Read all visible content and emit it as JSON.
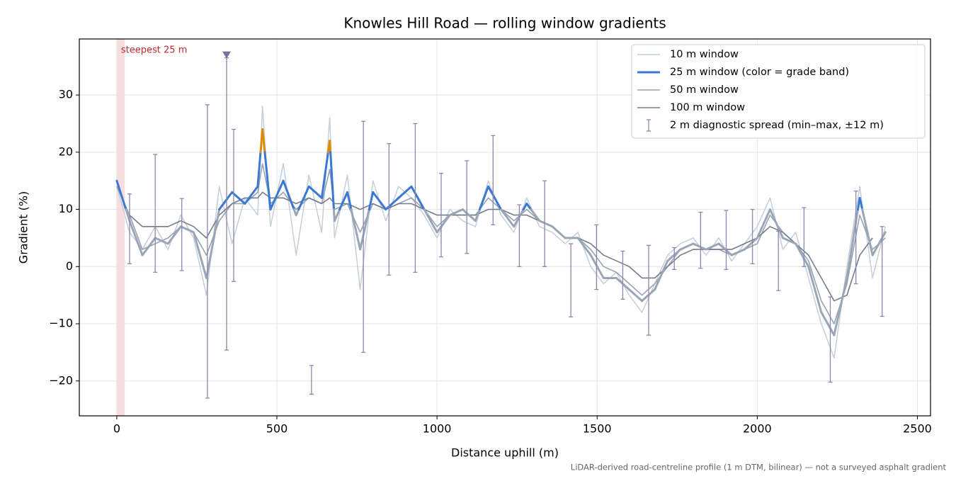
{
  "chart_data": {
    "type": "line",
    "title": "Knowles Hill Road — rolling window gradients",
    "x_label": "Distance uphill (m)",
    "y_label": "Gradient (%)",
    "footnote": "LiDAR-derived road-centreline profile (1 m DTM, bilinear) — not a surveyed asphalt gradient",
    "xlim": [
      -117,
      2541
    ],
    "ylim": [
      -26.1,
      39.8
    ],
    "xticks": [
      0,
      500,
      1000,
      1500,
      2000,
      2500
    ],
    "yticks": [
      {
        "value": -20,
        "label": "−20"
      },
      {
        "value": -10,
        "label": "−10"
      },
      0,
      10,
      20,
      30
    ],
    "grid": true,
    "legend": "upper right",
    "x": [
      0,
      40,
      80,
      120,
      160,
      200,
      240,
      280,
      320,
      360,
      400,
      440,
      455,
      480,
      520,
      560,
      600,
      640,
      665,
      680,
      720,
      760,
      800,
      840,
      880,
      920,
      960,
      1000,
      1040,
      1080,
      1120,
      1160,
      1200,
      1240,
      1280,
      1320,
      1360,
      1400,
      1440,
      1480,
      1520,
      1560,
      1600,
      1640,
      1680,
      1720,
      1760,
      1800,
      1840,
      1880,
      1920,
      1960,
      2000,
      2040,
      2080,
      2120,
      2160,
      2200,
      2240,
      2280,
      2320,
      2360,
      2400
    ],
    "series": [
      {
        "name": "10 m window",
        "color": "#c5ced8",
        "width": 1.5,
        "values": [
          14,
          6,
          3,
          7,
          3,
          9,
          5,
          -5,
          14,
          4,
          12,
          9,
          28,
          7,
          18,
          2,
          16,
          6,
          26,
          5,
          16,
          -4,
          15,
          8,
          14,
          12,
          9,
          5,
          10,
          8,
          7,
          15,
          9,
          6,
          12,
          7,
          6,
          4,
          6,
          0,
          -3,
          -1,
          -5,
          -8,
          -3,
          2,
          4,
          5,
          2,
          5,
          1,
          4,
          7,
          12,
          3,
          6,
          -2,
          -10,
          -16,
          0,
          14,
          -2,
          7
        ]
      },
      {
        "name": "25 m window (color = grade band)",
        "color": "#9aa6b6",
        "width": 3,
        "grade_bands": [
          {
            "from": 10,
            "color": "#3a78d4"
          },
          {
            "from": 20,
            "color": "#e08a00"
          }
        ],
        "legend_color": "#3a78d4",
        "values": [
          15,
          8,
          2,
          5,
          4,
          7,
          6,
          -2,
          10,
          13,
          11,
          14,
          24,
          10,
          15,
          9,
          14,
          12,
          22,
          8,
          13,
          3,
          13,
          10,
          12,
          14,
          10,
          6,
          9,
          10,
          8,
          14,
          10,
          7,
          11,
          8,
          7,
          5,
          5,
          2,
          -2,
          -2,
          -4,
          -6,
          -4,
          1,
          3,
          4,
          3,
          4,
          2,
          3,
          5,
          10,
          5,
          4,
          0,
          -8,
          -12,
          -2,
          12,
          2,
          6
        ]
      },
      {
        "name": "50 m window",
        "color": "#97a3b3",
        "width": 1.6,
        "values": [
          14,
          9,
          3,
          4,
          5,
          7,
          6,
          2,
          8,
          11,
          11,
          13,
          18,
          11,
          13,
          10,
          12,
          11,
          17,
          10,
          11,
          6,
          11,
          10,
          11,
          12,
          10,
          7,
          9,
          9,
          9,
          12,
          10,
          8,
          10,
          8,
          7,
          5,
          5,
          3,
          0,
          -1,
          -3,
          -5,
          -3,
          0,
          3,
          4,
          3,
          3,
          2,
          3,
          4,
          9,
          6,
          4,
          1,
          -6,
          -10,
          -3,
          9,
          3,
          5
        ]
      },
      {
        "name": "100 m window",
        "color": "#737e8c",
        "width": 1.6,
        "values": [
          null,
          9,
          7,
          7,
          7,
          8,
          7,
          5,
          9,
          11,
          12,
          12,
          13,
          12,
          12,
          11,
          12,
          11,
          12,
          11,
          11,
          10,
          11,
          10,
          11,
          11,
          10,
          9,
          9,
          9,
          9,
          10,
          10,
          9,
          9,
          8,
          7,
          5,
          5,
          4,
          2,
          1,
          0,
          -2,
          -2,
          0,
          2,
          3,
          3,
          3,
          3,
          4,
          5,
          7,
          6,
          4,
          2,
          -2,
          -6,
          -5,
          2,
          5,
          null
        ]
      }
    ],
    "errorbars": {
      "name": "2 m diagnostic spread (min–max, ±12 m)",
      "color": "#8d86b0",
      "x": [
        40,
        120,
        203,
        283,
        343,
        365,
        608,
        770,
        850,
        932,
        1013,
        1093,
        1175,
        1257,
        1336,
        1418,
        1498,
        1580,
        1661,
        1741,
        1823,
        1903,
        1985,
        2066,
        2146,
        2228,
        2308,
        2390
      ],
      "low": [
        0.5,
        -1,
        -0.7,
        -23,
        -14.6,
        -2.6,
        -22.3,
        -15,
        -1.5,
        -1,
        1.7,
        2.3,
        7.3,
        0,
        0,
        -8.8,
        -4,
        -5.7,
        -12,
        -0.5,
        -0.3,
        -0.5,
        0.5,
        -4.2,
        0,
        -20.2,
        -3,
        -8.7
      ],
      "high": [
        12.7,
        19.6,
        11.9,
        28.3,
        36.5,
        24,
        -17.3,
        25.4,
        21.5,
        25,
        16.3,
        18.5,
        22.9,
        10.8,
        15,
        4,
        7.3,
        2.7,
        3.7,
        3.3,
        9.5,
        9.8,
        10,
        6.2,
        10.3,
        -5.3,
        13.2,
        7
      ]
    },
    "steepest": {
      "label": "steepest 25 m",
      "from": 0,
      "to": 25,
      "color": "#f4c6c8",
      "label_color": "#c0282d"
    },
    "marker": {
      "x": 343,
      "y": 37,
      "color": "#7b6fa0"
    }
  }
}
